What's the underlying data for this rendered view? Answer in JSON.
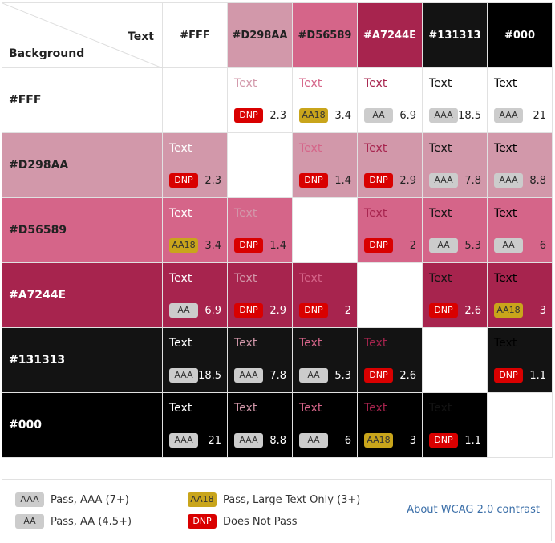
{
  "corner": {
    "text_label": "Text",
    "background_label": "Background"
  },
  "colors": [
    {
      "name": "#FFF",
      "hex": "#ffffff",
      "header_text_color": "#222222"
    },
    {
      "name": "#D298AA",
      "hex": "#d298aa",
      "header_text_color": "#222222"
    },
    {
      "name": "#D56589",
      "hex": "#d56589",
      "header_text_color": "#222222"
    },
    {
      "name": "#A7244E",
      "hex": "#a7244e",
      "header_text_color": "#ffffff"
    },
    {
      "name": "#131313",
      "hex": "#131313",
      "header_text_color": "#ffffff"
    },
    {
      "name": "#000",
      "hex": "#000000",
      "header_text_color": "#ffffff"
    }
  ],
  "sample_text": "Text",
  "rows": [
    {
      "cells": [
        null,
        {
          "badge": "DNP",
          "ratio": "2.3"
        },
        {
          "badge": "AA18",
          "ratio": "3.4"
        },
        {
          "badge": "AA",
          "ratio": "6.9"
        },
        {
          "badge": "AAA",
          "ratio": "18.5"
        },
        {
          "badge": "AAA",
          "ratio": "21"
        }
      ]
    },
    {
      "cells": [
        {
          "badge": "DNP",
          "ratio": "2.3"
        },
        null,
        {
          "badge": "DNP",
          "ratio": "1.4"
        },
        {
          "badge": "DNP",
          "ratio": "2.9"
        },
        {
          "badge": "AAA",
          "ratio": "7.8"
        },
        {
          "badge": "AAA",
          "ratio": "8.8"
        }
      ]
    },
    {
      "cells": [
        {
          "badge": "AA18",
          "ratio": "3.4"
        },
        {
          "badge": "DNP",
          "ratio": "1.4"
        },
        null,
        {
          "badge": "DNP",
          "ratio": "2"
        },
        {
          "badge": "AA",
          "ratio": "5.3"
        },
        {
          "badge": "AA",
          "ratio": "6"
        }
      ]
    },
    {
      "cells": [
        {
          "badge": "AA",
          "ratio": "6.9"
        },
        {
          "badge": "DNP",
          "ratio": "2.9"
        },
        {
          "badge": "DNP",
          "ratio": "2"
        },
        null,
        {
          "badge": "DNP",
          "ratio": "2.6"
        },
        {
          "badge": "AA18",
          "ratio": "3"
        }
      ]
    },
    {
      "cells": [
        {
          "badge": "AAA",
          "ratio": "18.5"
        },
        {
          "badge": "AAA",
          "ratio": "7.8"
        },
        {
          "badge": "AA",
          "ratio": "5.3"
        },
        {
          "badge": "DNP",
          "ratio": "2.6"
        },
        null,
        {
          "badge": "DNP",
          "ratio": "1.1"
        }
      ]
    },
    {
      "cells": [
        {
          "badge": "AAA",
          "ratio": "21"
        },
        {
          "badge": "AAA",
          "ratio": "8.8"
        },
        {
          "badge": "AA",
          "ratio": "6"
        },
        {
          "badge": "AA18",
          "ratio": "3"
        },
        {
          "badge": "DNP",
          "ratio": "1.1"
        },
        null
      ]
    }
  ],
  "legend": {
    "aaa": {
      "badge": "AAA",
      "label": "Pass, AAA (7+)"
    },
    "aa": {
      "badge": "AA",
      "label": "Pass, AA (4.5+)"
    },
    "aa18": {
      "badge": "AA18",
      "label": "Pass, Large Text Only (3+)"
    },
    "dnp": {
      "badge": "DNP",
      "label": "Does Not Pass"
    },
    "link_text": "About WCAG 2.0 contrast"
  }
}
